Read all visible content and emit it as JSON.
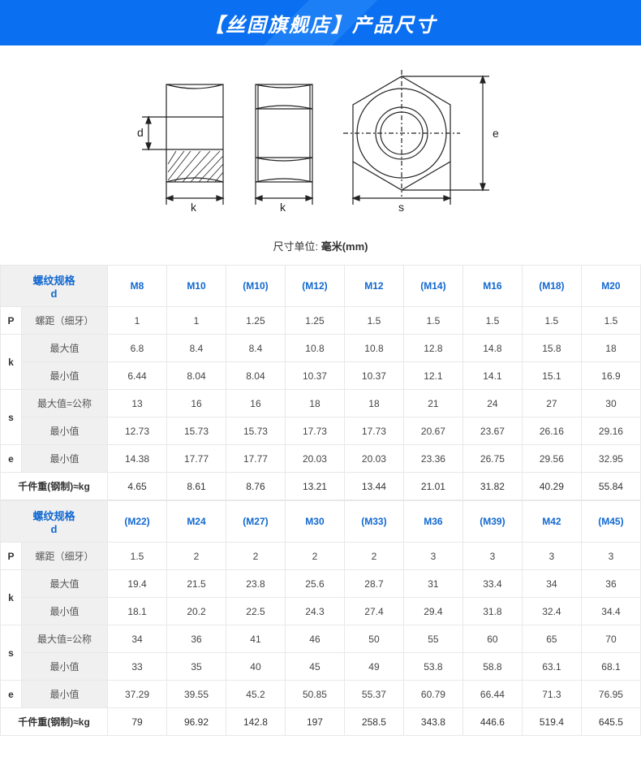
{
  "banner": {
    "text": "【丝固旗舰店】产品尺寸"
  },
  "diagram": {
    "labels": {
      "d": "d",
      "k": "k",
      "s": "s",
      "e": "e"
    },
    "unit_prefix": "尺寸单位: ",
    "unit_value": "毫米(mm)"
  },
  "colors": {
    "banner_bg": "#0a6ff0",
    "header_blue": "#1168d0",
    "grid": "#e8e8e8",
    "header_bg": "#f0f0f0"
  },
  "table1": {
    "spec_header": "螺纹规格",
    "spec_header_sub": "d",
    "sizes": [
      "M8",
      "M10",
      "(M10)",
      "(M12)",
      "M12",
      "(M14)",
      "M16",
      "(M18)",
      "M20"
    ],
    "row_groups": [
      {
        "group": "P",
        "rows": [
          {
            "label": "螺距（细牙）",
            "vals": [
              "1",
              "1",
              "1.25",
              "1.25",
              "1.5",
              "1.5",
              "1.5",
              "1.5",
              "1.5"
            ]
          }
        ]
      },
      {
        "group": "k",
        "rows": [
          {
            "label": "最大值",
            "vals": [
              "6.8",
              "8.4",
              "8.4",
              "10.8",
              "10.8",
              "12.8",
              "14.8",
              "15.8",
              "18"
            ]
          },
          {
            "label": "最小值",
            "vals": [
              "6.44",
              "8.04",
              "8.04",
              "10.37",
              "10.37",
              "12.1",
              "14.1",
              "15.1",
              "16.9"
            ]
          }
        ]
      },
      {
        "group": "s",
        "rows": [
          {
            "label": "最大值=公称",
            "vals": [
              "13",
              "16",
              "16",
              "18",
              "18",
              "21",
              "24",
              "27",
              "30"
            ]
          },
          {
            "label": "最小值",
            "vals": [
              "12.73",
              "15.73",
              "15.73",
              "17.73",
              "17.73",
              "20.67",
              "23.67",
              "26.16",
              "29.16"
            ]
          }
        ]
      },
      {
        "group": "e",
        "rows": [
          {
            "label": "最小值",
            "vals": [
              "14.38",
              "17.77",
              "17.77",
              "20.03",
              "20.03",
              "23.36",
              "26.75",
              "29.56",
              "32.95"
            ]
          }
        ]
      },
      {
        "group": "",
        "rows": [
          {
            "label": "千件重(钢制)≈kg",
            "vals": [
              "4.65",
              "8.61",
              "8.76",
              "13.21",
              "13.44",
              "21.01",
              "31.82",
              "40.29",
              "55.84"
            ],
            "bold": true
          }
        ]
      }
    ]
  },
  "table2": {
    "spec_header": "螺纹规格",
    "spec_header_sub": "d",
    "sizes": [
      "(M22)",
      "M24",
      "(M27)",
      "M30",
      "(M33)",
      "M36",
      "(M39)",
      "M42",
      "(M45)"
    ],
    "row_groups": [
      {
        "group": "P",
        "rows": [
          {
            "label": "螺距（细牙）",
            "vals": [
              "1.5",
              "2",
              "2",
              "2",
              "2",
              "3",
              "3",
              "3",
              "3"
            ]
          }
        ]
      },
      {
        "group": "k",
        "rows": [
          {
            "label": "最大值",
            "vals": [
              "19.4",
              "21.5",
              "23.8",
              "25.6",
              "28.7",
              "31",
              "33.4",
              "34",
              "36"
            ]
          },
          {
            "label": "最小值",
            "vals": [
              "18.1",
              "20.2",
              "22.5",
              "24.3",
              "27.4",
              "29.4",
              "31.8",
              "32.4",
              "34.4"
            ]
          }
        ]
      },
      {
        "group": "s",
        "rows": [
          {
            "label": "最大值=公称",
            "vals": [
              "34",
              "36",
              "41",
              "46",
              "50",
              "55",
              "60",
              "65",
              "70"
            ]
          },
          {
            "label": "最小值",
            "vals": [
              "33",
              "35",
              "40",
              "45",
              "49",
              "53.8",
              "58.8",
              "63.1",
              "68.1"
            ]
          }
        ]
      },
      {
        "group": "e",
        "rows": [
          {
            "label": "最小值",
            "vals": [
              "37.29",
              "39.55",
              "45.2",
              "50.85",
              "55.37",
              "60.79",
              "66.44",
              "71.3",
              "76.95"
            ]
          }
        ]
      },
      {
        "group": "",
        "rows": [
          {
            "label": "千件重(钢制)≈kg",
            "vals": [
              "79",
              "96.92",
              "142.8",
              "197",
              "258.5",
              "343.8",
              "446.6",
              "519.4",
              "645.5"
            ],
            "bold": true
          }
        ]
      }
    ]
  }
}
